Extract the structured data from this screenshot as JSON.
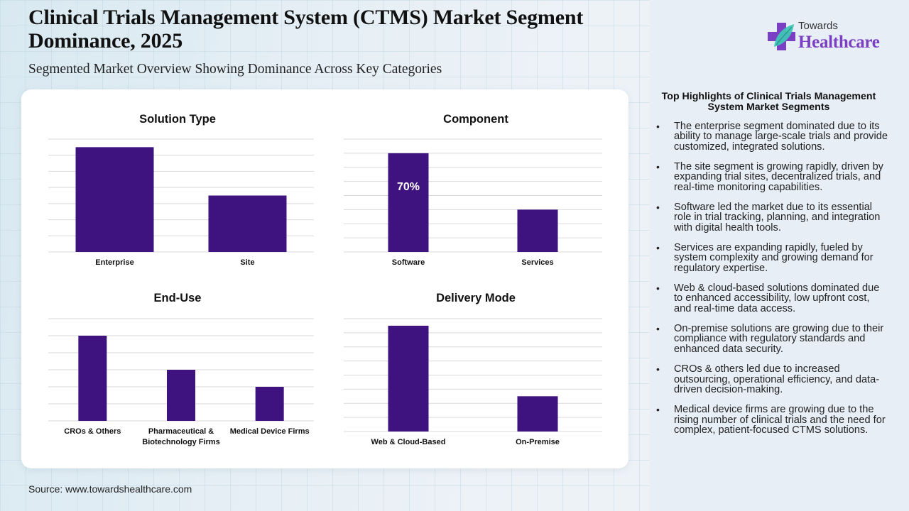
{
  "header": {
    "title": "Clinical Trials Management System (CTMS) Market Segment Dominance, 2025",
    "subtitle": "Segmented Market Overview Showing Dominance Across Key Categories"
  },
  "logo": {
    "icon": "medical-cross-leaf-icon",
    "line1": "Towards",
    "line2": "Healthcare",
    "colors": {
      "cross": "#7b3fc4",
      "leaf": "#3fc7b5"
    }
  },
  "colors": {
    "bar": "#3e1380",
    "gridline": "#d9d9d9",
    "card": "#ffffff"
  },
  "chart_data": [
    {
      "type": "bar",
      "title": "Solution Type",
      "categories": [
        "Enterprise",
        "Site"
      ],
      "values": [
        6.5,
        3.5
      ],
      "ylim": [
        0,
        7
      ],
      "gridlines": 7,
      "data_labels": [
        "",
        ""
      ],
      "xlabel": "",
      "ylabel": "",
      "grid": true,
      "legend": "none"
    },
    {
      "type": "bar",
      "title": "Component",
      "categories": [
        "Software",
        "Services"
      ],
      "values": [
        70,
        30
      ],
      "ylim": [
        0,
        80
      ],
      "gridlines": 8,
      "data_labels": [
        "70%",
        ""
      ],
      "xlabel": "",
      "ylabel": "",
      "grid": true,
      "legend": "none"
    },
    {
      "type": "bar",
      "title": "End-Use",
      "categories": [
        "CROs & Others",
        "Pharmaceutical & Biotechnology Firms",
        "Medical Device Firms"
      ],
      "category_lines": [
        [
          "CROs & Others"
        ],
        [
          "Pharmaceutical &",
          "Biotechnology Firms"
        ],
        [
          "Medical Device Firms"
        ]
      ],
      "values": [
        5,
        3,
        2
      ],
      "ylim": [
        0,
        6
      ],
      "gridlines": 6,
      "data_labels": [
        "",
        "",
        ""
      ],
      "xlabel": "",
      "ylabel": "",
      "grid": true,
      "legend": "none"
    },
    {
      "type": "bar",
      "title": "Delivery Mode",
      "categories": [
        "Web & Cloud-Based",
        "On-Premise"
      ],
      "values": [
        7.5,
        2.5
      ],
      "ylim": [
        0,
        8
      ],
      "gridlines": 8,
      "data_labels": [
        "",
        ""
      ],
      "xlabel": "",
      "ylabel": "",
      "grid": true,
      "legend": "none"
    }
  ],
  "highlights": {
    "title": "Top Highlights of Clinical Trials Management System Market Segments",
    "items": [
      "The enterprise segment dominated due to its ability to manage large-scale trials and provide customized, integrated solutions.",
      "The site segment is growing rapidly, driven by expanding trial sites, decentralized trials, and real-time monitoring capabilities.",
      "Software led the market due to its essential role in trial tracking, planning, and integration with digital health tools.",
      "Services are expanding rapidly, fueled by system complexity and growing demand for regulatory expertise.",
      "Web & cloud-based solutions dominated due to enhanced accessibility, low upfront cost, and real-time data access.",
      "On-premise solutions are growing due to their compliance with regulatory standards and enhanced data security.",
      "CROs & others led due to increased outsourcing, operational efficiency, and data-driven decision-making.",
      "Medical device firms are growing due to the rising number of clinical trials and the need for complex, patient-focused CTMS solutions."
    ]
  },
  "footer": {
    "source": "Source: www.towardshealthcare.com"
  }
}
